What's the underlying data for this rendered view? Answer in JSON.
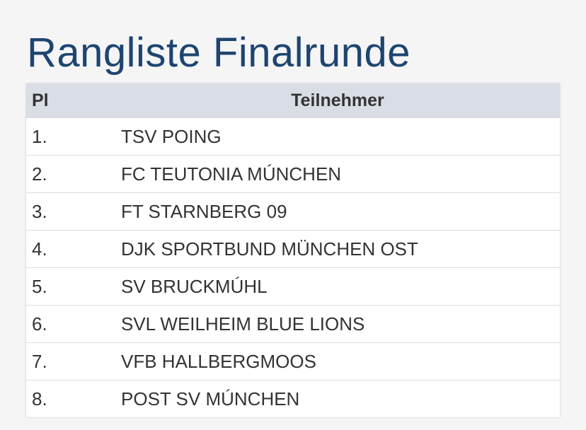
{
  "header": {
    "title": "Rangliste Finalrunde"
  },
  "table": {
    "headers": [
      "Pl",
      "Teilnehmer"
    ],
    "rows": [
      [
        "1.",
        "TSV POING"
      ],
      [
        "2.",
        "FC TEUTONIA MÚNCHEN"
      ],
      [
        "3.",
        "FT STARNBERG 09"
      ],
      [
        "4.",
        "DJK SPORTBUND MÜNCHEN OST"
      ],
      [
        "5.",
        "SV BRUCKMÚHL"
      ],
      [
        "6.",
        "SVL WEILHEIM BLUE LIONS"
      ],
      [
        "7.",
        "VFB HALLBERGMOOS"
      ],
      [
        "8.",
        "POST SV MÚNCHEN"
      ]
    ]
  }
}
